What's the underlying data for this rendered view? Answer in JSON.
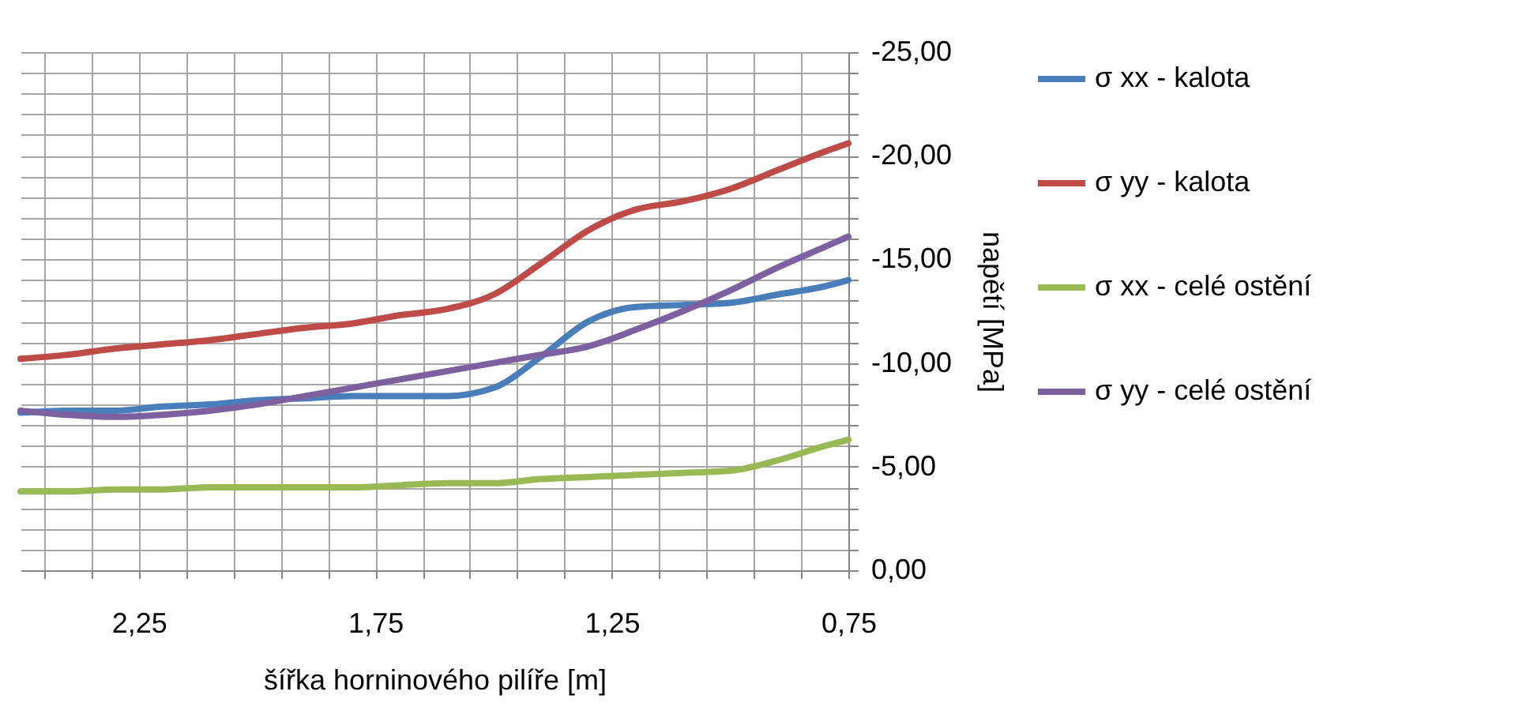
{
  "chart_data": {
    "type": "line",
    "xlabel": "šířka horninového pilíře [m]",
    "ylabel": "napětí [MPa]",
    "x": [
      2.5,
      2.4,
      2.3,
      2.2,
      2.1,
      2.0,
      1.9,
      1.8,
      1.7,
      1.6,
      1.5,
      1.4,
      1.3,
      1.2,
      1.1,
      1.0,
      0.9,
      0.8,
      0.75
    ],
    "series": [
      {
        "name": "σ xx - kalota",
        "color": "#4a7ebb",
        "values": [
          -7.6,
          -7.7,
          -7.7,
          -7.9,
          -8.0,
          -8.2,
          -8.3,
          -8.4,
          -8.4,
          -8.4,
          -8.8,
          -10.3,
          -12.0,
          -12.7,
          -12.8,
          -12.9,
          -13.3,
          -13.7,
          -14.0
        ]
      },
      {
        "name": "σ yy - kalota",
        "color": "#be4b48",
        "values": [
          -10.2,
          -10.4,
          -10.7,
          -10.9,
          -11.1,
          -11.4,
          -11.7,
          -11.9,
          -12.3,
          -12.6,
          -13.3,
          -14.8,
          -16.4,
          -17.4,
          -17.8,
          -18.4,
          -19.3,
          -20.2,
          -20.6
        ]
      },
      {
        "name": "σ xx - celé ostění",
        "color": "#98b954",
        "values": [
          -3.8,
          -3.8,
          -3.9,
          -3.9,
          -4.0,
          -4.0,
          -4.0,
          -4.0,
          -4.1,
          -4.2,
          -4.2,
          -4.4,
          -4.5,
          -4.6,
          -4.7,
          -4.8,
          -5.3,
          -6.0,
          -6.3
        ]
      },
      {
        "name": "σ yy - celé ostění",
        "color": "#7d60a0",
        "values": [
          -7.7,
          -7.5,
          -7.4,
          -7.5,
          -7.7,
          -8.0,
          -8.4,
          -8.8,
          -9.2,
          -9.6,
          -10.0,
          -10.4,
          -10.8,
          -11.6,
          -12.5,
          -13.5,
          -14.6,
          -15.6,
          -16.1
        ]
      }
    ],
    "xlim": [
      2.5,
      0.75
    ],
    "xticks": [
      {
        "value": 2.45,
        "label": null
      },
      {
        "value": 2.35,
        "label": null
      },
      {
        "value": 2.25,
        "label": "2,25"
      },
      {
        "value": 2.15,
        "label": null
      },
      {
        "value": 2.05,
        "label": null
      },
      {
        "value": 1.95,
        "label": null
      },
      {
        "value": 1.85,
        "label": null
      },
      {
        "value": 1.75,
        "label": "1,75"
      },
      {
        "value": 1.65,
        "label": null
      },
      {
        "value": 1.55,
        "label": null
      },
      {
        "value": 1.45,
        "label": null
      },
      {
        "value": 1.35,
        "label": null
      },
      {
        "value": 1.25,
        "label": "1,25"
      },
      {
        "value": 1.15,
        "label": null
      },
      {
        "value": 1.05,
        "label": null
      },
      {
        "value": 0.95,
        "label": null
      },
      {
        "value": 0.85,
        "label": null
      },
      {
        "value": 0.75,
        "label": "0,75"
      }
    ],
    "ylim": [
      0,
      -25
    ],
    "yticks": [
      {
        "value": 0,
        "label": "0,00"
      },
      {
        "value": -1,
        "label": null
      },
      {
        "value": -2,
        "label": null
      },
      {
        "value": -3,
        "label": null
      },
      {
        "value": -4,
        "label": null
      },
      {
        "value": -5,
        "label": "-5,00"
      },
      {
        "value": -6,
        "label": null
      },
      {
        "value": -7,
        "label": null
      },
      {
        "value": -8,
        "label": null
      },
      {
        "value": -9,
        "label": null
      },
      {
        "value": -10,
        "label": "-10,00"
      },
      {
        "value": -11,
        "label": null
      },
      {
        "value": -12,
        "label": null
      },
      {
        "value": -13,
        "label": null
      },
      {
        "value": -14,
        "label": null
      },
      {
        "value": -15,
        "label": "-15,00"
      },
      {
        "value": -16,
        "label": null
      },
      {
        "value": -17,
        "label": null
      },
      {
        "value": -18,
        "label": null
      },
      {
        "value": -19,
        "label": null
      },
      {
        "value": -20,
        "label": "-20,00"
      },
      {
        "value": -21,
        "label": null
      },
      {
        "value": -22,
        "label": null
      },
      {
        "value": -23,
        "label": null
      },
      {
        "value": -24,
        "label": null
      },
      {
        "value": -25,
        "label": "-25,00"
      }
    ],
    "grid": true,
    "legend": "right"
  }
}
